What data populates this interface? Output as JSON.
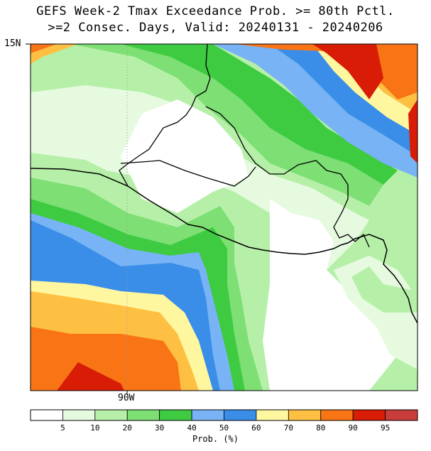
{
  "title_line1": "GEFS Week-2 Tmax Exceedance Prob. >= 80th Pctl.",
  "title_line2": ">=2 Consec. Days, Valid: 20240131 - 20240206",
  "axes": {
    "lat_label": "15N",
    "lon_label": "90W"
  },
  "colorbar": {
    "title": "Prob. (%)",
    "tick_labels": [
      "5",
      "10",
      "20",
      "30",
      "40",
      "50",
      "60",
      "70",
      "80",
      "90",
      "95"
    ],
    "colors": [
      "#ffffff",
      "#e6fae0",
      "#b6f0a8",
      "#7ddf74",
      "#3ecb42",
      "#78b4f5",
      "#3a8ee8",
      "#fff7a0",
      "#fdc042",
      "#f97414",
      "#d81c06",
      "#c83c3c"
    ]
  }
}
